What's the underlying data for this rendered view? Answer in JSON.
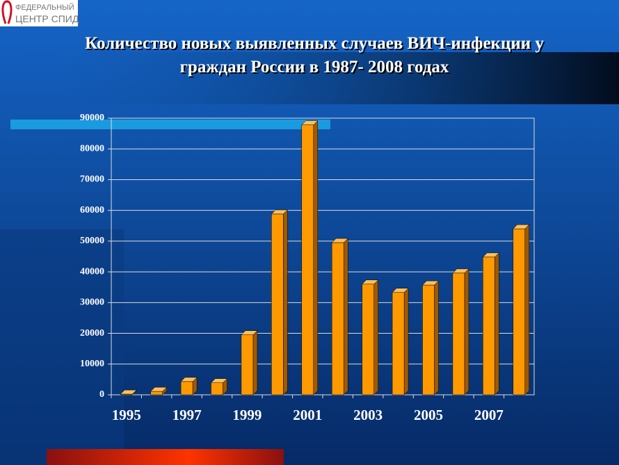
{
  "logo": {
    "line1": "ФЕДЕРАЛЬНЫЙ",
    "line2": "ЦЕНТР СПИД"
  },
  "chart_data": {
    "type": "bar",
    "title": [
      "Количество новых выявленных случаев ВИЧ-инфекции у",
      "граждан России в 1987- 2008 годах"
    ],
    "categories": [
      "1995",
      null,
      "1997",
      null,
      "1999",
      null,
      "2001",
      null,
      "2003",
      null,
      "2005",
      null,
      "2007",
      null
    ],
    "values": [
      200,
      1100,
      4300,
      3900,
      19500,
      58800,
      87800,
      49500,
      36000,
      33300,
      35700,
      39600,
      44800,
      54000
    ],
    "color": "#ff9900",
    "ylim": [
      0,
      90000
    ],
    "yticks": [
      0,
      10000,
      20000,
      30000,
      40000,
      50000,
      60000,
      70000,
      80000,
      90000
    ],
    "grid": true
  }
}
